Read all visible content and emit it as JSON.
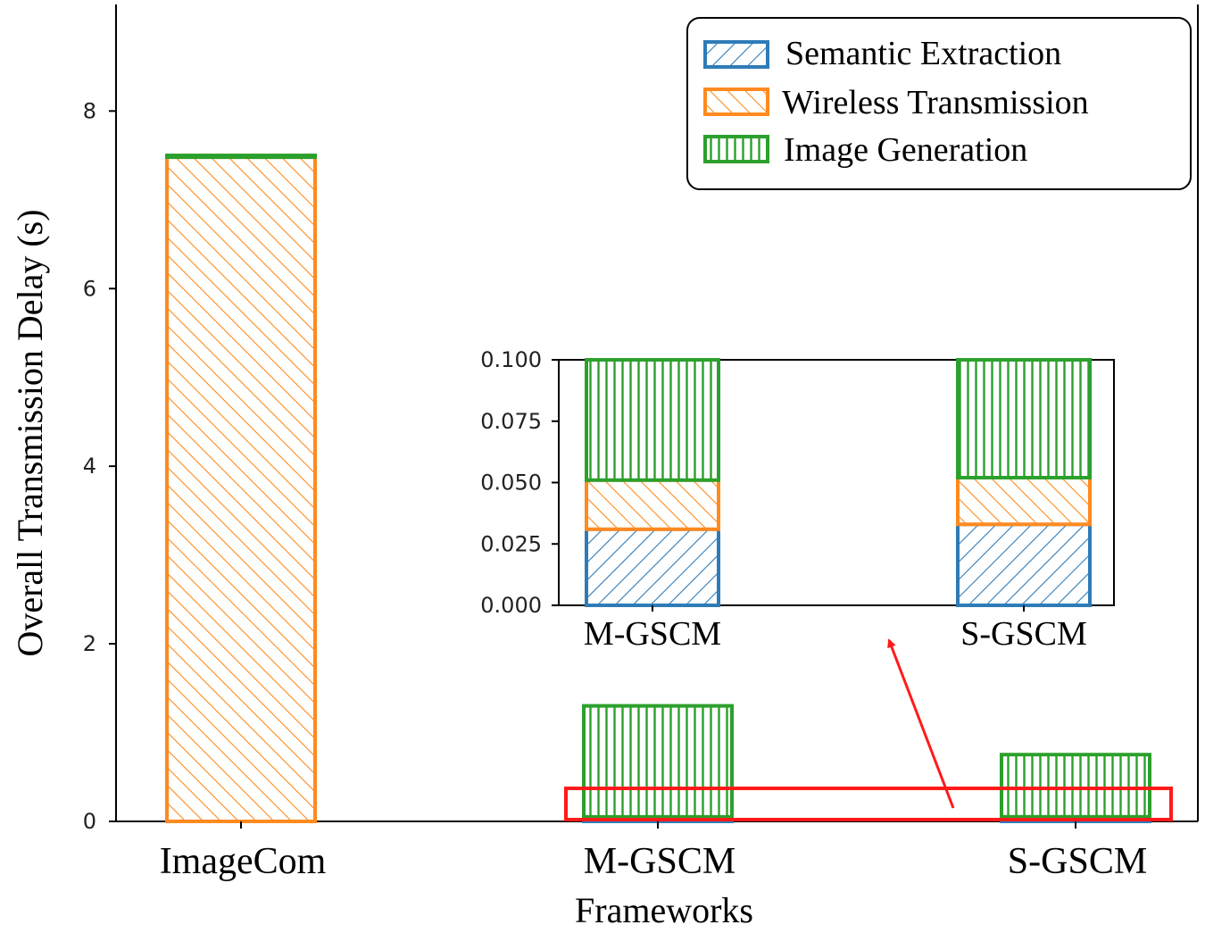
{
  "colors": {
    "semantic": "#2e7bb8",
    "wireless": "#ff8a1f",
    "generation": "#2ca02c",
    "highlight": "#ff1a1a",
    "axis": "#000000"
  },
  "chart_data": [
    {
      "type": "bar",
      "stacked": true,
      "categories": [
        "ImageCom",
        "M-GSCM",
        "S-GSCM"
      ],
      "series": [
        {
          "name": "Semantic Extraction",
          "values": [
            0,
            0.031,
            0.033
          ],
          "hatch": "forward-diagonal"
        },
        {
          "name": "Wireless Transmission",
          "values": [
            7.48,
            0.02,
            0.019
          ],
          "hatch": "back-diagonal"
        },
        {
          "name": "Image Generation",
          "values": [
            0.02,
            1.25,
            0.7
          ],
          "hatch": "vertical"
        }
      ],
      "xlabel": "Frameworks",
      "ylabel": "Overall Transmission Delay (s)",
      "ylim": [
        0,
        9.2
      ],
      "yticks": [
        "0",
        "2",
        "4",
        "6",
        "8"
      ],
      "legend": {
        "placement": "top-right",
        "entries": [
          "Semantic Extraction",
          "Wireless Transmission",
          "Image Generation"
        ]
      }
    },
    {
      "type": "bar",
      "stacked": true,
      "inset": true,
      "categories": [
        "M-GSCM",
        "S-GSCM"
      ],
      "series": [
        {
          "name": "Semantic Extraction",
          "values": [
            0.031,
            0.033
          ]
        },
        {
          "name": "Wireless Transmission",
          "values": [
            0.02,
            0.019
          ]
        },
        {
          "name": "Image Generation",
          "values": [
            0.049,
            0.048
          ]
        }
      ],
      "ylim": [
        0,
        0.1
      ],
      "yticks": [
        "0.000",
        "0.025",
        "0.050",
        "0.075",
        "0.100"
      ]
    }
  ]
}
